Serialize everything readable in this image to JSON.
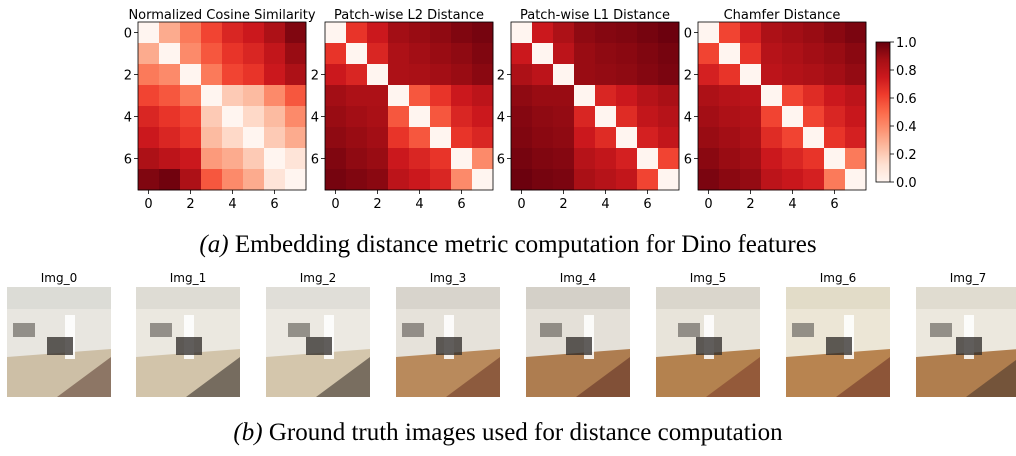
{
  "chart_data": [
    {
      "type": "heatmap",
      "title": "Normalized Cosine Similarity",
      "x_ticks": [
        "0",
        "2",
        "4",
        "6"
      ],
      "y_ticks": [
        "0",
        "2",
        "4",
        "6"
      ],
      "values": [
        [
          0.0,
          0.3,
          0.45,
          0.6,
          0.7,
          0.75,
          0.85,
          0.95
        ],
        [
          0.3,
          0.0,
          0.4,
          0.55,
          0.65,
          0.7,
          0.78,
          0.9
        ],
        [
          0.45,
          0.4,
          0.0,
          0.45,
          0.6,
          0.65,
          0.75,
          0.85
        ],
        [
          0.6,
          0.55,
          0.45,
          0.0,
          0.2,
          0.25,
          0.4,
          0.55
        ],
        [
          0.7,
          0.65,
          0.6,
          0.2,
          0.0,
          0.15,
          0.25,
          0.4
        ],
        [
          0.75,
          0.7,
          0.65,
          0.25,
          0.15,
          0.0,
          0.2,
          0.3
        ],
        [
          0.85,
          0.8,
          0.75,
          0.35,
          0.3,
          0.2,
          0.0,
          0.1
        ],
        [
          0.95,
          0.98,
          0.85,
          0.55,
          0.4,
          0.3,
          0.1,
          0.0
        ]
      ]
    },
    {
      "type": "heatmap",
      "title": "Patch-wise L2 Distance",
      "x_ticks": [
        "0",
        "2",
        "4",
        "6"
      ],
      "y_ticks": [
        "2",
        "4",
        "6"
      ],
      "values": [
        [
          0.0,
          0.65,
          0.75,
          0.88,
          0.9,
          0.92,
          0.95,
          0.97
        ],
        [
          0.65,
          0.0,
          0.7,
          0.85,
          0.88,
          0.9,
          0.92,
          0.95
        ],
        [
          0.75,
          0.7,
          0.0,
          0.85,
          0.86,
          0.88,
          0.9,
          0.93
        ],
        [
          0.88,
          0.85,
          0.85,
          0.0,
          0.55,
          0.65,
          0.75,
          0.8
        ],
        [
          0.9,
          0.88,
          0.86,
          0.55,
          0.0,
          0.55,
          0.7,
          0.75
        ],
        [
          0.92,
          0.9,
          0.88,
          0.65,
          0.55,
          0.0,
          0.65,
          0.7
        ],
        [
          0.95,
          0.92,
          0.9,
          0.75,
          0.7,
          0.65,
          0.0,
          0.4
        ],
        [
          0.97,
          0.95,
          0.93,
          0.8,
          0.75,
          0.7,
          0.4,
          0.0
        ]
      ]
    },
    {
      "type": "heatmap",
      "title": "Patch-wise L1 Distance",
      "x_ticks": [
        "0",
        "2",
        "4",
        "6"
      ],
      "y_ticks": [
        "2",
        "4",
        "6"
      ],
      "values": [
        [
          0.0,
          0.75,
          0.85,
          0.92,
          0.94,
          0.95,
          0.97,
          0.99
        ],
        [
          0.75,
          0.0,
          0.8,
          0.9,
          0.92,
          0.93,
          0.95,
          0.97
        ],
        [
          0.85,
          0.8,
          0.0,
          0.9,
          0.91,
          0.92,
          0.94,
          0.96
        ],
        [
          0.92,
          0.9,
          0.9,
          0.0,
          0.7,
          0.75,
          0.82,
          0.86
        ],
        [
          0.94,
          0.92,
          0.91,
          0.7,
          0.0,
          0.68,
          0.78,
          0.82
        ],
        [
          0.95,
          0.93,
          0.92,
          0.75,
          0.68,
          0.0,
          0.72,
          0.78
        ],
        [
          0.97,
          0.95,
          0.94,
          0.82,
          0.78,
          0.72,
          0.0,
          0.6
        ],
        [
          0.99,
          0.97,
          0.96,
          0.86,
          0.82,
          0.78,
          0.6,
          0.0
        ]
      ]
    },
    {
      "type": "heatmap",
      "title": "Chamfer Distance",
      "x_ticks": [
        "0",
        "2",
        "4",
        "6"
      ],
      "y_ticks": [
        "0",
        "2",
        "4",
        "6"
      ],
      "values": [
        [
          0.0,
          0.6,
          0.72,
          0.85,
          0.88,
          0.9,
          0.93,
          0.96
        ],
        [
          0.6,
          0.0,
          0.65,
          0.82,
          0.85,
          0.88,
          0.9,
          0.93
        ],
        [
          0.72,
          0.65,
          0.0,
          0.8,
          0.83,
          0.85,
          0.88,
          0.91
        ],
        [
          0.85,
          0.82,
          0.8,
          0.0,
          0.6,
          0.68,
          0.75,
          0.8
        ],
        [
          0.88,
          0.85,
          0.83,
          0.6,
          0.0,
          0.6,
          0.7,
          0.76
        ],
        [
          0.9,
          0.88,
          0.85,
          0.68,
          0.6,
          0.0,
          0.65,
          0.72
        ],
        [
          0.93,
          0.9,
          0.88,
          0.75,
          0.7,
          0.65,
          0.0,
          0.45
        ],
        [
          0.96,
          0.93,
          0.91,
          0.8,
          0.76,
          0.72,
          0.45,
          0.0
        ]
      ]
    }
  ],
  "colorbar": {
    "range": [
      0.0,
      1.0
    ],
    "ticks": [
      "0.0",
      "0.2",
      "0.4",
      "0.6",
      "0.8",
      "1.0"
    ],
    "low_color": "#fff5f0",
    "high_color": "#67000d"
  },
  "captions": {
    "a_tag": "(a)",
    "a_text": " Embedding distance metric computation for Dino features",
    "b_tag": "(b)",
    "b_text": " Ground truth images used for distance computation"
  },
  "images": [
    {
      "label": "Img_0",
      "sky": "#dcdcd6",
      "wall": "#e8e6e0",
      "floor": "#cdbfa6",
      "accent": "#5a3a30"
    },
    {
      "label": "Img_1",
      "sky": "#dedcd4",
      "wall": "#ebe8e0",
      "floor": "#d2c4aa",
      "accent": "#2a2420"
    },
    {
      "label": "Img_2",
      "sky": "#e0ded8",
      "wall": "#ece9e2",
      "floor": "#d4c6ac",
      "accent": "#2e2622"
    },
    {
      "label": "Img_3",
      "sky": "#d8d4cc",
      "wall": "#e6e2da",
      "floor": "#b98a5c",
      "accent": "#6a3426"
    },
    {
      "label": "Img_4",
      "sky": "#d4d0c8",
      "wall": "#e4e0d8",
      "floor": "#ae7d50",
      "accent": "#5c2c22"
    },
    {
      "label": "Img_5",
      "sky": "#dad6cc",
      "wall": "#e8e4da",
      "floor": "#b4824f",
      "accent": "#7a3a2a"
    },
    {
      "label": "Img_6",
      "sky": "#e2dcc8",
      "wall": "#ece6d6",
      "floor": "#b88450",
      "accent": "#6a3024"
    },
    {
      "label": "Img_7",
      "sky": "#e0dcd0",
      "wall": "#ece8de",
      "floor": "#b07e4e",
      "accent": "#44322a"
    }
  ]
}
